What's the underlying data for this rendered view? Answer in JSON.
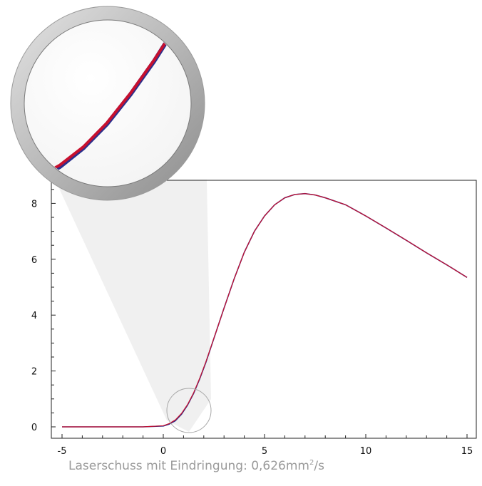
{
  "chart_data": {
    "type": "line",
    "title": "",
    "xlabel": "",
    "ylabel": "",
    "xlim": [
      -5,
      15
    ],
    "ylim": [
      -0.3,
      8.8
    ],
    "xticks": [
      -5,
      0,
      5,
      10,
      15
    ],
    "yticks": [
      0,
      2,
      4,
      6,
      8
    ],
    "grid": false,
    "series": [
      {
        "color": "#2b2f8c",
        "x": [
          -5,
          -2,
          -1,
          0,
          0.3,
          0.6,
          0.9,
          1.2,
          1.5,
          1.8,
          2.1,
          2.4,
          2.7,
          3.0,
          3.5,
          4.0,
          4.5,
          5.0,
          5.5,
          6.0,
          6.5,
          7.0,
          7.5,
          8.0,
          9.0,
          10.0,
          11.0,
          12.0,
          13.0,
          14.0,
          15.0
        ],
        "y": [
          0,
          0,
          0,
          0.03,
          0.1,
          0.22,
          0.45,
          0.78,
          1.2,
          1.72,
          2.3,
          2.95,
          3.6,
          4.25,
          5.3,
          6.25,
          7.0,
          7.55,
          7.95,
          8.2,
          8.32,
          8.35,
          8.3,
          8.2,
          7.95,
          7.55,
          7.12,
          6.68,
          6.23,
          5.8,
          5.35
        ]
      },
      {
        "color": "#c8102e",
        "x": [
          -5,
          -2,
          -1,
          0,
          0.3,
          0.6,
          0.9,
          1.2,
          1.5,
          1.8,
          2.1,
          2.4,
          2.7,
          3.0,
          3.5,
          4.0,
          4.5,
          5.0,
          5.5,
          6.0,
          6.5,
          7.0,
          7.5,
          8.0,
          9.0,
          10.0,
          11.0,
          12.0,
          13.0,
          14.0,
          15.0
        ],
        "y": [
          0,
          0,
          0,
          0.04,
          0.12,
          0.25,
          0.48,
          0.8,
          1.22,
          1.74,
          2.32,
          2.96,
          3.6,
          4.25,
          5.3,
          6.25,
          7.0,
          7.55,
          7.95,
          8.2,
          8.32,
          8.35,
          8.3,
          8.2,
          7.95,
          7.55,
          7.12,
          6.68,
          6.23,
          5.8,
          5.35
        ]
      }
    ],
    "zoom": {
      "center_x": 1.3,
      "center_y": 0.55,
      "x_range": [
        0.5,
        2.5
      ],
      "y_range": [
        0.1,
        3.0
      ]
    }
  },
  "colors": {
    "lens_ring": "#a8a8a8",
    "cone_fill": "#e6e6e6"
  },
  "caption": {
    "text": "Laserschuss mit Eindringung: 0,626mm",
    "superscript": "2",
    "unit": "/s"
  }
}
